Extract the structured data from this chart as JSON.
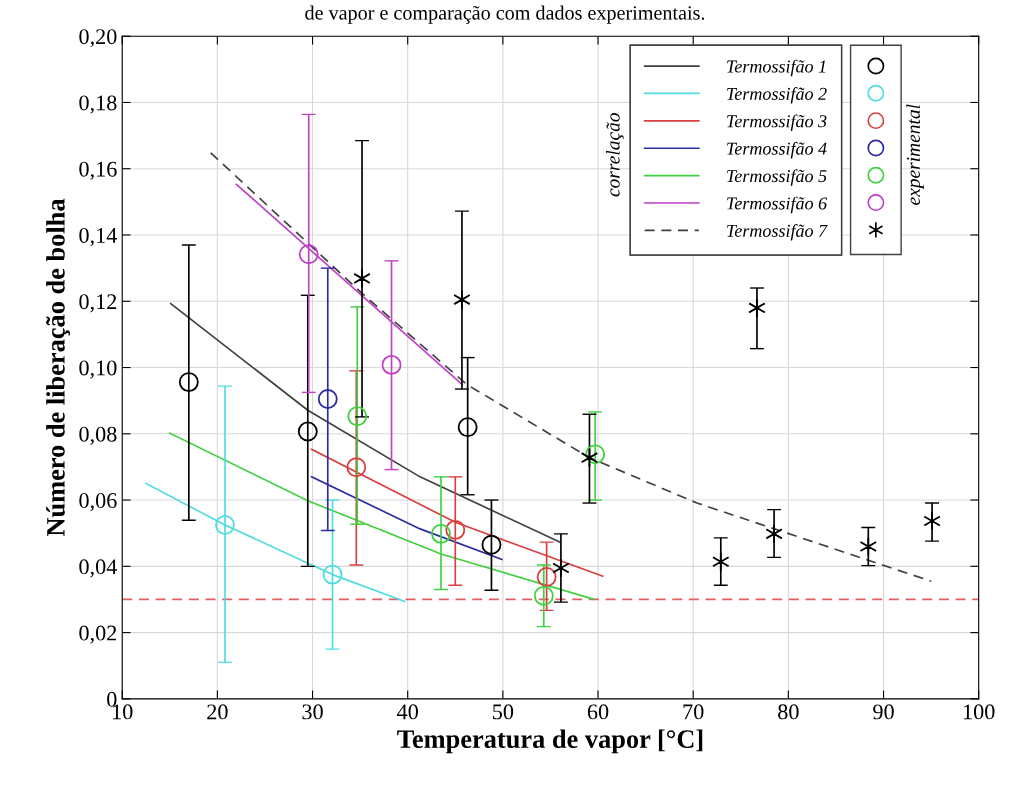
{
  "chart_data": {
    "type": "scatter",
    "title": "de vapor e comparação com dados experimentais.",
    "xlabel": "Temperatura de vapor [°C]",
    "ylabel": "Número de liberação de bolha",
    "xlim": [
      10,
      100
    ],
    "xticks": [
      10,
      20,
      30,
      40,
      50,
      60,
      70,
      80,
      90,
      100
    ],
    "ylim": [
      0,
      0.2
    ],
    "yticks": [
      0,
      {
        "value": 0.02,
        "label": "0,02"
      },
      {
        "value": 0.04,
        "label": "0,04"
      },
      {
        "value": 0.06,
        "label": "0,06"
      },
      {
        "value": 0.08,
        "label": "0,08"
      },
      {
        "value": 0.1,
        "label": "0,10"
      },
      {
        "value": 0.12,
        "label": "0,12"
      },
      {
        "value": 0.14,
        "label": "0,14"
      },
      {
        "value": 0.16,
        "label": "0,16"
      },
      {
        "value": 0.18,
        "label": "0,18"
      },
      {
        "value": 0.2,
        "label": "0,20"
      }
    ],
    "grid": true,
    "legend": "top right",
    "annotations": [
      "correlação",
      "experimental"
    ],
    "ref_lines": [
      {
        "axis": "y",
        "value": 0.03,
        "color": "#e06060",
        "line_style": "dashed"
      }
    ],
    "series": [
      {
        "type": "line",
        "name": "Termossifão 1",
        "color": "#404040",
        "line_style": "solid",
        "x": [
          15.1,
          29.5,
          41.3,
          56.0
        ],
        "values": [
          0.1193,
          0.0871,
          0.067,
          0.0473
        ]
      },
      {
        "type": "line",
        "name": "Termossifão 2",
        "color": "#50dce0",
        "line_style": "solid",
        "x": [
          12.5,
          20.8,
          32.1,
          39.7
        ],
        "values": [
          0.065,
          0.0525,
          0.0375,
          0.0294
        ]
      },
      {
        "type": "line",
        "name": "Termossifão 3",
        "color": "#d84040",
        "line_style": "solid",
        "x": [
          29.9,
          45.0,
          60.5
        ],
        "values": [
          0.0753,
          0.0533,
          0.037
        ]
      },
      {
        "type": "line",
        "name": "Termossifão 4",
        "color": "#2c2ca0",
        "line_style": "solid",
        "x": [
          29.9,
          41.3,
          49.9
        ],
        "values": [
          0.067,
          0.0513,
          0.0421
        ]
      },
      {
        "type": "line",
        "name": "Termossifão 5",
        "color": "#40d040",
        "line_style": "solid",
        "x": [
          15.0,
          29.5,
          43.5,
          59.5
        ],
        "values": [
          0.0802,
          0.0598,
          0.0437,
          0.0301
        ]
      },
      {
        "type": "line",
        "name": "Termossifão 6",
        "color": "#c040c8",
        "line_style": "solid",
        "x": [
          22.0,
          45.7
        ],
        "values": [
          0.1553,
          0.0949
        ]
      },
      {
        "type": "line",
        "name": "Termossifão 7",
        "color": "#404040",
        "line_style": "dashed",
        "x": [
          19.3,
          35.2,
          46.2,
          59.1,
          70.4,
          95.0
        ],
        "values": [
          0.1648,
          0.1224,
          0.0949,
          0.0728,
          0.0591,
          0.0355
        ]
      },
      {
        "marker": "circle",
        "color": "#000000",
        "x": [
          17.0,
          29.5,
          46.3,
          48.8
        ],
        "values": [
          0.0956,
          0.0807,
          0.082,
          0.0465
        ],
        "errors": [
          [
            0.0539,
            0.137
          ],
          [
            0.04,
            0.1218
          ],
          [
            0.0616,
            0.103
          ],
          [
            0.0328,
            0.06
          ]
        ]
      },
      {
        "marker": "circle",
        "color": "#50dce0",
        "x": [
          20.8,
          32.1
        ],
        "values": [
          0.0525,
          0.0375
        ],
        "errors": [
          [
            0.011,
            0.0944
          ],
          [
            0.015,
            0.06
          ]
        ]
      },
      {
        "marker": "circle",
        "color": "#d84040",
        "x": [
          34.6,
          45.0,
          54.6
        ],
        "values": [
          0.0699,
          0.051,
          0.0368
        ],
        "errors": [
          [
            0.0404,
            0.099
          ],
          [
            0.0343,
            0.067
          ],
          [
            0.0267,
            0.0473
          ]
        ]
      },
      {
        "marker": "circle",
        "color": "#2c2ca0",
        "x": [
          31.6
        ],
        "values": [
          0.0905
        ],
        "errors": [
          [
            0.0508,
            0.13
          ]
        ]
      },
      {
        "marker": "circle",
        "color": "#40d040",
        "x": [
          34.7,
          43.5,
          54.3,
          59.7
        ],
        "values": [
          0.0853,
          0.0498,
          0.0311,
          0.0738
        ],
        "errors": [
          [
            0.0527,
            0.1183
          ],
          [
            0.033,
            0.067
          ],
          [
            0.0218,
            0.0404
          ],
          [
            0.06,
            0.0866
          ]
        ]
      },
      {
        "marker": "circle",
        "color": "#c040c8",
        "x": [
          29.6,
          38.3
        ],
        "values": [
          0.1342,
          0.1008
        ],
        "errors": [
          [
            0.0925,
            0.1764
          ],
          [
            0.0692,
            0.1322
          ]
        ]
      },
      {
        "marker": "cross",
        "color": "#000000",
        "x": [
          35.2,
          45.7,
          56.1,
          59.1,
          72.9,
          76.7,
          78.5,
          88.4,
          95.1
        ],
        "values": [
          0.1269,
          0.1205,
          0.0395,
          0.0728,
          0.0414,
          0.118,
          0.0498,
          0.046,
          0.0537
        ],
        "errors": [
          [
            0.0851,
            0.1685
          ],
          [
            0.0935,
            0.1472
          ],
          [
            0.0292,
            0.0498
          ],
          [
            0.0591,
            0.0859
          ],
          [
            0.0343,
            0.0486
          ],
          [
            0.1057,
            0.124
          ],
          [
            0.0427,
            0.0571
          ],
          [
            0.0402,
            0.0517
          ],
          [
            0.0476,
            0.0591
          ]
        ]
      }
    ]
  }
}
